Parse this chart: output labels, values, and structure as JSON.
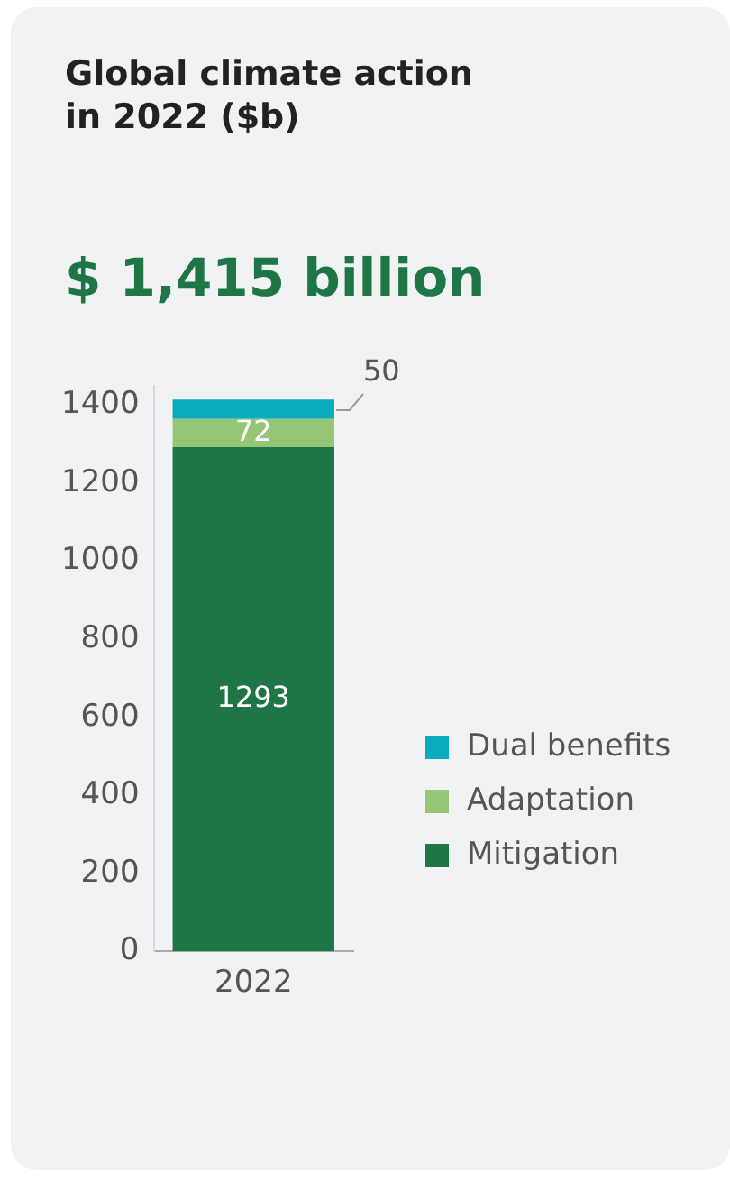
{
  "chart_data": {
    "type": "bar",
    "title": "Global climate action\nin 2022 ($b)",
    "subtitle": "$ 1,415 billion",
    "categories": [
      "2022"
    ],
    "series": [
      {
        "name": "Mitigation",
        "color": "#1e7545",
        "values": [
          1293
        ]
      },
      {
        "name": "Adaptation",
        "color": "#95c675",
        "values": [
          72
        ]
      },
      {
        "name": "Dual benefits",
        "color": "#0aabbd",
        "values": [
          50
        ]
      }
    ],
    "stacked": true,
    "ylim": [
      0,
      1450
    ],
    "yticks": [
      0,
      200,
      400,
      600,
      800,
      1000,
      1200,
      1400
    ],
    "grid": false,
    "legend": "right",
    "data_labels": true
  }
}
